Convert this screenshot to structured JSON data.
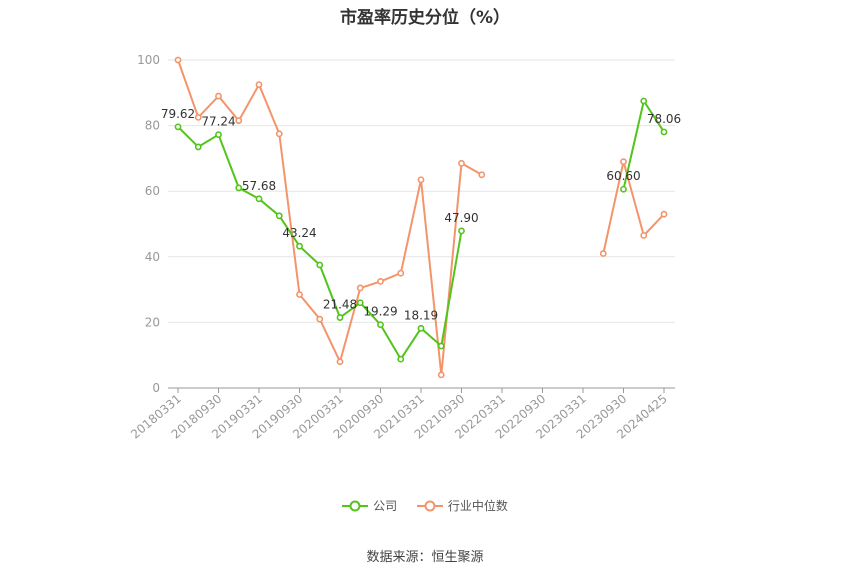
{
  "chart_data": {
    "type": "line",
    "title": "市盈率历史分位（%）",
    "x_tick_labels": [
      "20180331",
      "20180930",
      "20190331",
      "20190930",
      "20200331",
      "20200930",
      "20210331",
      "20210930",
      "20220331",
      "20220930",
      "20230331",
      "20230930",
      "20240425"
    ],
    "ylim": [
      0,
      100
    ],
    "y_ticks": [
      0,
      20,
      40,
      60,
      80,
      100
    ],
    "grid": true,
    "legend_position": "bottom",
    "series": [
      {
        "name": "公司",
        "color": "#52c41a",
        "points": [
          [
            0,
            79.62
          ],
          [
            1,
            73.5
          ],
          [
            2,
            77.24
          ],
          [
            3,
            61.0
          ],
          [
            4,
            57.68
          ],
          [
            5,
            52.5
          ],
          [
            6,
            43.24
          ],
          [
            7,
            37.5
          ],
          [
            8,
            21.48
          ],
          [
            9,
            26.0
          ],
          [
            10,
            19.29
          ],
          [
            11,
            8.8
          ],
          [
            12,
            18.19
          ],
          [
            13,
            12.8
          ],
          [
            14,
            47.9
          ],
          [
            22,
            60.6
          ],
          [
            23,
            87.5
          ],
          [
            24,
            78.06
          ]
        ],
        "labels": {
          "0": "79.62",
          "2": "77.24",
          "4": "57.68",
          "6": "43.24",
          "8": "21.48",
          "10": "19.29",
          "12": "18.19",
          "14": "47.90",
          "22": "60.60",
          "24": "78.06"
        }
      },
      {
        "name": "行业中位数",
        "color": "#f4946a",
        "points": [
          [
            0,
            100
          ],
          [
            1,
            82.5
          ],
          [
            2,
            89
          ],
          [
            3,
            81.5
          ],
          [
            4,
            92.5
          ],
          [
            5,
            77.5
          ],
          [
            6,
            28.5
          ],
          [
            7,
            21
          ],
          [
            8,
            8
          ],
          [
            9,
            30.5
          ],
          [
            10,
            32.5
          ],
          [
            11,
            35
          ],
          [
            12,
            63.5
          ],
          [
            13,
            4
          ],
          [
            14,
            68.5
          ],
          [
            15,
            65
          ],
          [
            21,
            41
          ],
          [
            22,
            69
          ],
          [
            23,
            46.5
          ],
          [
            24,
            53
          ]
        ],
        "labels": {}
      }
    ]
  },
  "legend": {
    "company": "公司",
    "industry": "行业中位数"
  },
  "source": "数据来源：恒生聚源"
}
